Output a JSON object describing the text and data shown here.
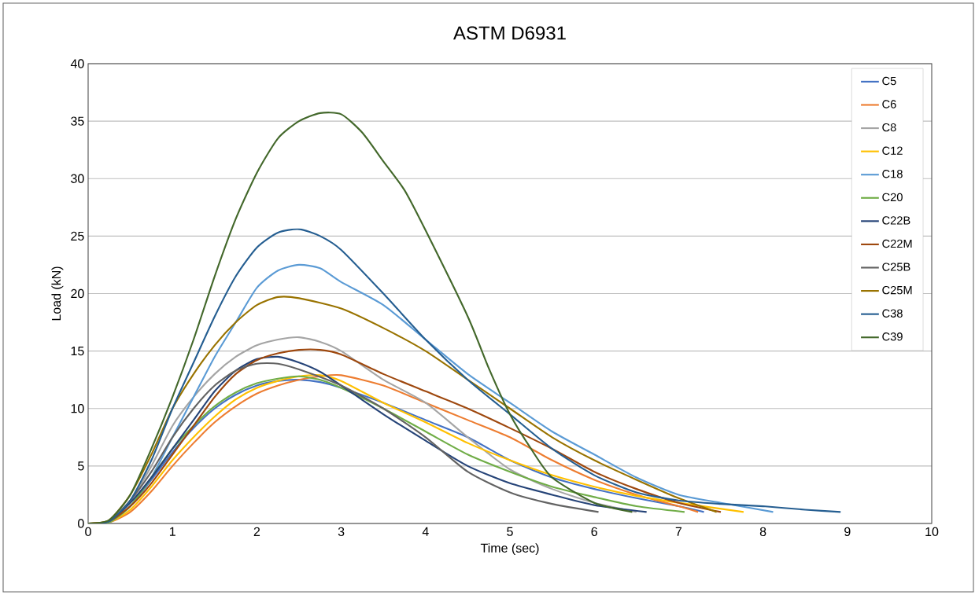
{
  "chart_data": {
    "type": "line",
    "title": "ASTM D6931",
    "xlabel": "Time (sec)",
    "ylabel": "Load (kN)",
    "xlim": [
      0,
      10
    ],
    "xticks": [
      0,
      1,
      2,
      3,
      4,
      5,
      6,
      7,
      8,
      9,
      10
    ],
    "ylim": [
      0,
      40
    ],
    "yticks": [
      0,
      5,
      10,
      15,
      20,
      25,
      30,
      35,
      40
    ],
    "grid": "y",
    "legend": "top right",
    "marker": "none",
    "line_style": "solid",
    "series": [
      {
        "name": "C5",
        "color": "#4472c4",
        "x": [
          0,
          0.25,
          0.5,
          0.75,
          1,
          1.25,
          1.5,
          1.75,
          2,
          2.25,
          2.5,
          2.75,
          3,
          3.5,
          4,
          4.5,
          5,
          5.5,
          6,
          6.5,
          7,
          7.3
        ],
        "values": [
          0,
          0.1,
          1.5,
          3.8,
          6.2,
          8.3,
          10,
          11.2,
          12,
          12.4,
          12.5,
          12.3,
          11.8,
          10.5,
          9,
          7.5,
          5.5,
          4,
          3,
          2.2,
          1.5,
          1.0
        ]
      },
      {
        "name": "C6",
        "color": "#ed7d31",
        "x": [
          0,
          0.25,
          0.5,
          0.75,
          1,
          1.25,
          1.5,
          1.75,
          2,
          2.25,
          2.5,
          2.75,
          3,
          3.5,
          4,
          4.5,
          5,
          5.5,
          6,
          6.5,
          7,
          7.23
        ],
        "values": [
          0,
          0.1,
          1,
          2.8,
          5,
          7,
          8.8,
          10.2,
          11.3,
          12,
          12.5,
          12.8,
          12.9,
          12,
          10.5,
          9,
          7.5,
          5.5,
          3.8,
          2.5,
          1.5,
          1.0
        ]
      },
      {
        "name": "C8",
        "color": "#a5a5a5",
        "x": [
          0,
          0.25,
          0.5,
          0.75,
          1,
          1.25,
          1.5,
          1.75,
          2,
          2.25,
          2.5,
          2.75,
          3,
          3.5,
          4,
          4.5,
          5,
          5.5,
          6,
          6.5
        ],
        "values": [
          0,
          0.2,
          2,
          5,
          8.5,
          11,
          13,
          14.5,
          15.5,
          16,
          16.2,
          15.8,
          15,
          12.5,
          10.5,
          7.5,
          4.7,
          3,
          1.8,
          1.0
        ]
      },
      {
        "name": "C12",
        "color": "#ffc000",
        "x": [
          0,
          0.25,
          0.5,
          0.75,
          1,
          1.25,
          1.5,
          1.75,
          2,
          2.25,
          2.5,
          2.75,
          3,
          3.5,
          4,
          4.5,
          5,
          5.5,
          6,
          6.5,
          7,
          7.77
        ],
        "values": [
          0,
          0.1,
          1.2,
          3.2,
          5.5,
          7.5,
          9.3,
          10.8,
          11.8,
          12.4,
          12.8,
          12.9,
          12.4,
          10.5,
          8.8,
          7,
          5.5,
          4.2,
          3.2,
          2.4,
          1.8,
          1.0
        ]
      },
      {
        "name": "C18",
        "color": "#5b9bd5",
        "x": [
          0,
          0.25,
          0.5,
          0.75,
          1,
          1.25,
          1.5,
          1.75,
          2,
          2.25,
          2.5,
          2.75,
          3,
          3.5,
          4,
          4.5,
          5,
          5.5,
          6,
          6.5,
          7,
          7.5,
          8.12
        ],
        "values": [
          0,
          0.1,
          1.5,
          4,
          7.5,
          11,
          14.5,
          17.5,
          20.5,
          22,
          22.5,
          22.2,
          21,
          19,
          16,
          13,
          10.5,
          8,
          6,
          4,
          2.5,
          1.8,
          1.0
        ]
      },
      {
        "name": "C20",
        "color": "#70ad47",
        "x": [
          0,
          0.25,
          0.5,
          0.75,
          1,
          1.25,
          1.5,
          1.75,
          2,
          2.25,
          2.5,
          2.75,
          3,
          3.5,
          4,
          4.5,
          5,
          5.5,
          6,
          6.5,
          7.07
        ],
        "values": [
          0,
          0.1,
          1.5,
          4,
          6.5,
          8.5,
          10.2,
          11.4,
          12.2,
          12.6,
          12.8,
          12.5,
          11.8,
          10,
          8,
          6,
          4.5,
          3.2,
          2.3,
          1.5,
          1.0
        ]
      },
      {
        "name": "C22B",
        "color": "#264478",
        "x": [
          0,
          0.25,
          0.5,
          0.75,
          1,
          1.25,
          1.5,
          1.75,
          2,
          2.25,
          2.5,
          2.75,
          3,
          3.5,
          4,
          4.5,
          5,
          5.5,
          6,
          6.62
        ],
        "values": [
          0,
          0.2,
          1.8,
          4,
          6.5,
          9,
          11.5,
          13.3,
          14.3,
          14.5,
          14,
          13.2,
          12,
          9.5,
          7.2,
          5,
          3.5,
          2.5,
          1.6,
          1.0
        ]
      },
      {
        "name": "C22M",
        "color": "#9e480e",
        "x": [
          0,
          0.25,
          0.5,
          0.75,
          1,
          1.25,
          1.5,
          1.75,
          2,
          2.25,
          2.5,
          2.75,
          3,
          3.5,
          4,
          4.5,
          5,
          5.5,
          6,
          6.5,
          7,
          7.5
        ],
        "values": [
          0,
          0.2,
          1.5,
          3.5,
          6,
          8.5,
          11,
          13,
          14.2,
          14.8,
          15.1,
          15.1,
          14.7,
          13,
          11.5,
          10,
          8.3,
          6.5,
          4.5,
          3,
          1.8,
          1.0
        ]
      },
      {
        "name": "C25B",
        "color": "#636363",
        "x": [
          0,
          0.25,
          0.5,
          0.75,
          1,
          1.25,
          1.5,
          1.75,
          2,
          2.25,
          2.5,
          3,
          3.5,
          4,
          4.5,
          5,
          5.5,
          6.05
        ],
        "values": [
          0,
          0.2,
          2,
          4.5,
          7.5,
          10,
          12,
          13.3,
          13.9,
          13.9,
          13.4,
          12,
          10,
          7.5,
          4.5,
          2.7,
          1.7,
          1.0
        ]
      },
      {
        "name": "C25M",
        "color": "#997300",
        "x": [
          0,
          0.25,
          0.5,
          0.75,
          1,
          1.25,
          1.5,
          1.75,
          2,
          2.25,
          2.5,
          3,
          3.5,
          4,
          4.5,
          5,
          5.5,
          6,
          6.5,
          7,
          7.45
        ],
        "values": [
          0,
          0.3,
          2.5,
          6,
          10,
          13,
          15.5,
          17.5,
          19,
          19.7,
          19.6,
          18.7,
          17,
          15,
          12.5,
          10,
          7.5,
          5.5,
          3.8,
          2.2,
          1.0
        ]
      },
      {
        "name": "C38",
        "color": "#255e91",
        "x": [
          0,
          0.25,
          0.5,
          0.75,
          1,
          1.25,
          1.5,
          1.75,
          2,
          2.25,
          2.5,
          2.75,
          3,
          3.5,
          4,
          4.5,
          5,
          5.5,
          6,
          6.5,
          7,
          7.5,
          8,
          8.5,
          8.92
        ],
        "values": [
          0,
          0.2,
          2,
          5.5,
          10,
          14,
          18,
          21.5,
          24,
          25.3,
          25.6,
          25,
          23.8,
          20,
          16,
          12.5,
          9.5,
          6.5,
          4.2,
          2.7,
          2,
          1.7,
          1.5,
          1.2,
          1.0
        ]
      },
      {
        "name": "C39",
        "color": "#43682b",
        "x": [
          0,
          0.25,
          0.5,
          0.75,
          1,
          1.25,
          1.5,
          1.75,
          2,
          2.25,
          2.5,
          2.75,
          3,
          3.25,
          3.5,
          3.75,
          4,
          4.5,
          4.75,
          5,
          5.25,
          5.5,
          6,
          6.45
        ],
        "values": [
          0,
          0.3,
          2.5,
          6.5,
          11,
          16,
          21.5,
          26.5,
          30.5,
          33.5,
          35,
          35.7,
          35.6,
          34,
          31.5,
          29,
          25.5,
          18,
          13.5,
          9.5,
          6.5,
          4,
          1.8,
          1.0
        ]
      }
    ]
  }
}
